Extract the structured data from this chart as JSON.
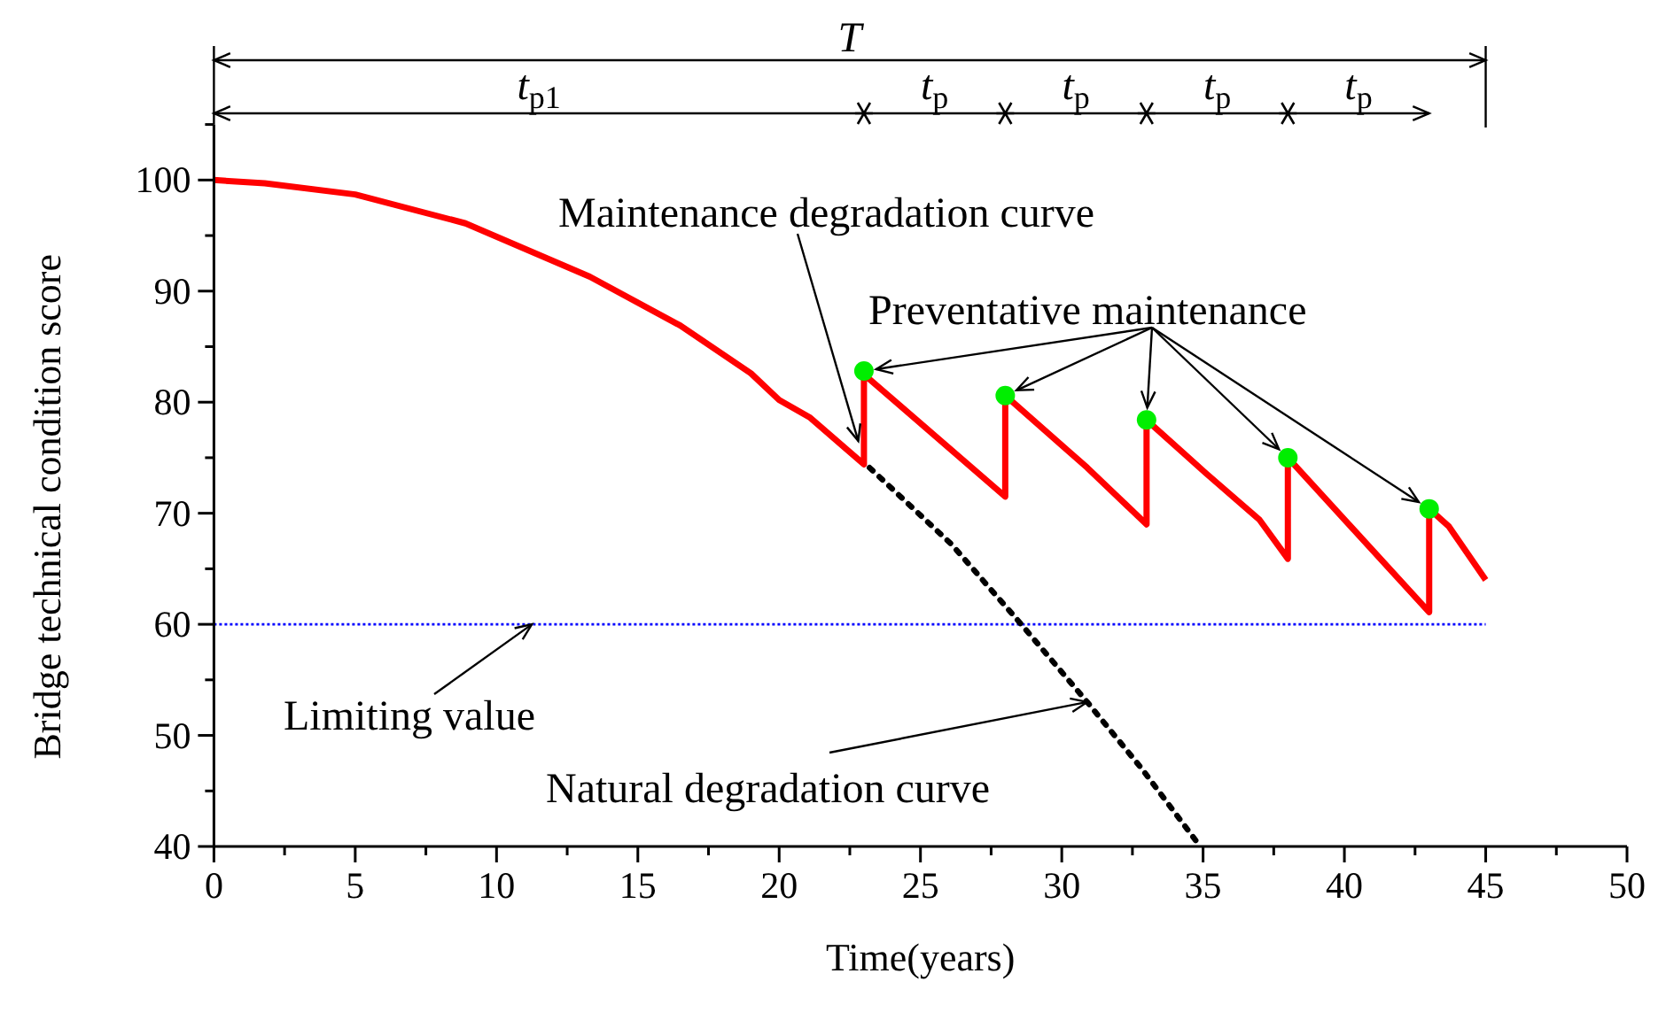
{
  "chart_data": {
    "type": "line",
    "xlabel": "Time(years)",
    "ylabel": "Bridge technical condition score",
    "xlim": [
      0,
      50
    ],
    "ylim": [
      40,
      105
    ],
    "xticks": [
      0,
      {
        "value": 2.5,
        "label": null
      },
      5,
      {
        "value": 7.5,
        "label": null
      },
      10,
      {
        "value": 12.5,
        "label": null
      },
      15,
      {
        "value": 17.5,
        "label": null
      },
      20,
      {
        "value": 22.5,
        "label": null
      },
      25,
      {
        "value": 27.5,
        "label": null
      },
      30,
      {
        "value": 32.5,
        "label": null
      },
      35,
      {
        "value": 37.5,
        "label": null
      },
      40,
      {
        "value": 42.5,
        "label": null
      },
      45,
      {
        "value": 47.5,
        "label": null
      },
      50
    ],
    "yticks": [
      40,
      {
        "value": 45,
        "label": null
      },
      50,
      {
        "value": 55,
        "label": null
      },
      60,
      {
        "value": 65,
        "label": null
      },
      70,
      {
        "value": 75,
        "label": null
      },
      80,
      {
        "value": 85,
        "label": null
      },
      90,
      {
        "value": 95,
        "label": null
      },
      100,
      {
        "value": 105,
        "label": null
      }
    ],
    "grid": false,
    "series": [
      {
        "color": "#ff0000",
        "line_style": "solid",
        "marker": "none",
        "x": [
          0,
          1.8,
          5,
          8.9,
          13.3,
          16.5,
          19,
          20,
          21.1,
          23,
          23,
          28,
          28,
          30.9,
          33,
          33,
          35.1,
          37,
          38,
          38,
          43,
          43,
          43.7,
          45
        ],
        "values": [
          100,
          99.7,
          98.7,
          96.1,
          91.3,
          86.9,
          82.6,
          80.2,
          78.6,
          74.4,
          82.5,
          71.5,
          80.6,
          74.1,
          69,
          78.4,
          73.6,
          69.4,
          65.9,
          75,
          61.1,
          70.4,
          68.8,
          64
        ]
      },
      {
        "color": "#000000",
        "line_style": "dotted",
        "marker": "none",
        "x": [
          23.2,
          26.1,
          28.6,
          30.9,
          32.8,
          34.9
        ],
        "values": [
          74.1,
          67.2,
          59.9,
          53,
          47.1,
          40
        ]
      },
      {
        "type": "scatter",
        "color": "#00ee00",
        "marker": "circle",
        "x": [
          23,
          28,
          33,
          38,
          43
        ],
        "values": [
          82.8,
          80.6,
          78.4,
          75,
          70.4
        ]
      }
    ],
    "ref_lines": [
      {
        "axis": "y",
        "value": 60,
        "color": "#0000ff",
        "line_style": "dotted"
      }
    ],
    "annotations": [
      {
        "text": "Maintenance degradation curve",
        "x": 22.8,
        "y": 76.5
      },
      {
        "text": "Preventative maintenance",
        "x": 23,
        "y": 82.8
      },
      {
        "text": "Limiting value",
        "x": 11.25,
        "y": 60
      },
      {
        "text": "Natural degradation curve",
        "x": 30.9,
        "y": 53
      },
      "T",
      "t$_{p1}$",
      "t$_{p}$",
      "t$_{p}$",
      "t$_{p}$",
      "t$_{p}$"
    ]
  }
}
